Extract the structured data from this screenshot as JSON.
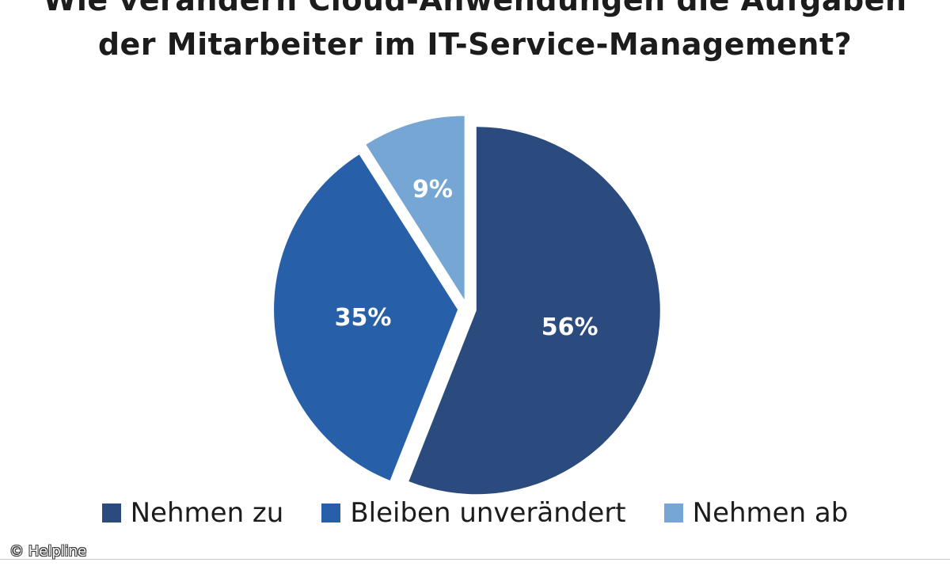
{
  "chart_data": {
    "type": "pie",
    "title": "Wie verändern Cloud-Anwendungen die Aufgaben der Mitarbeiter im IT-Service-Management?",
    "title_lines": [
      "Wie verändern Cloud-Anwendungen die Aufgaben",
      "der Mitarbeiter im IT-Service-Management?"
    ],
    "categories": [
      "Nehmen zu",
      "Bleiben unverändert",
      "Nehmen ab"
    ],
    "values": [
      56,
      35,
      9
    ],
    "labels": [
      "56%",
      "35%",
      "9%"
    ],
    "colors": [
      "#2b4a7e",
      "#2760a8",
      "#76a6d3"
    ],
    "legend_position": "bottom"
  },
  "copyright": "© Helpline"
}
